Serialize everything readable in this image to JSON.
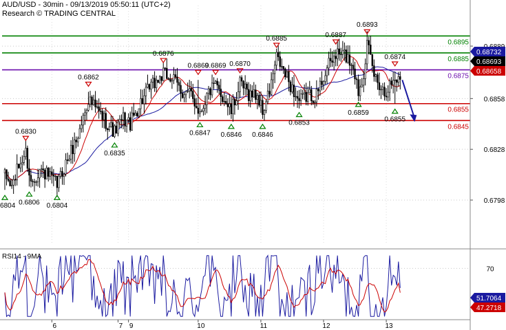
{
  "header": {
    "line1": "AUD/USD - 30min - 09/13/2019 05:50:11 (UTC+2)",
    "line2": "Research © TRADING CENTRAL"
  },
  "rsi_panel": {
    "label": "RSI14 - 9MA"
  },
  "colors": {
    "resistance": "#008000",
    "pivot": "#6a0dad",
    "support": "#cc0000",
    "candle": "#000000",
    "ma_fast": "#cc0000",
    "ma_slow": "#1a1aa0",
    "rsi_line": "#1a1aa0",
    "rsi_ma": "#cc0000",
    "price_tag": "#000000",
    "rsi_tag": "#1a1aa0",
    "ma_tag": "#cc0000",
    "forecast_arrow": "#1a1aa0"
  },
  "chart_data": [
    {
      "type": "candlestick",
      "title": "AUD/USD - 30min",
      "x_ticks": [
        "6",
        "7",
        "9",
        "10",
        "11",
        "12",
        "13"
      ],
      "y_ticks": [
        0.6889,
        0.6858,
        0.6828,
        0.6798
      ],
      "ylim": [
        0.6772,
        0.6913
      ],
      "grid": true,
      "horizontal_levels": [
        {
          "value": 0.6895,
          "label": "0.6895",
          "role": "resistance"
        },
        {
          "value": 0.6885,
          "label": "0.6885",
          "role": "resistance"
        },
        {
          "value": 0.6875,
          "label": "0.6875",
          "role": "pivot"
        },
        {
          "value": 0.6855,
          "label": "0.6855",
          "role": "support"
        },
        {
          "value": 0.6845,
          "label": "0.6845",
          "role": "support"
        }
      ],
      "price_tags": [
        {
          "value": 0.68732,
          "label": "0.68732",
          "role": "ma_slow"
        },
        {
          "value": 0.68693,
          "label": "0.68693",
          "role": "price"
        },
        {
          "value": 0.68658,
          "label": "0.68658",
          "role": "ma_fast"
        }
      ],
      "highs": [
        {
          "i": 12,
          "value": 0.683,
          "label": "0.6830"
        },
        {
          "i": 48,
          "value": 0.6862,
          "label": "0.6862"
        },
        {
          "i": 91,
          "value": 0.6876,
          "label": "0.6876"
        },
        {
          "i": 111,
          "value": 0.6869,
          "label": "0.6869"
        },
        {
          "i": 121,
          "value": 0.6869,
          "label": "0.6869"
        },
        {
          "i": 135,
          "value": 0.687,
          "label": "0.6870"
        },
        {
          "i": 156,
          "value": 0.6885,
          "label": "0.6885"
        },
        {
          "i": 190,
          "value": 0.6887,
          "label": "0.6887"
        },
        {
          "i": 208,
          "value": 0.6893,
          "label": "0.6893"
        },
        {
          "i": 224,
          "value": 0.6874,
          "label": "0.6874"
        }
      ],
      "lows": [
        {
          "i": 0,
          "value": 0.6804,
          "label": "0.6804"
        },
        {
          "i": 14,
          "value": 0.6806,
          "label": "0.6806"
        },
        {
          "i": 30,
          "value": 0.6804,
          "label": "0.6804"
        },
        {
          "i": 63,
          "value": 0.6835,
          "label": "0.6835"
        },
        {
          "i": 112,
          "value": 0.6847,
          "label": "0.6847"
        },
        {
          "i": 130,
          "value": 0.6846,
          "label": "0.6846"
        },
        {
          "i": 148,
          "value": 0.6846,
          "label": "0.6846"
        },
        {
          "i": 169,
          "value": 0.6853,
          "label": "0.6853"
        },
        {
          "i": 203,
          "value": 0.6859,
          "label": "0.6859"
        },
        {
          "i": 224,
          "value": 0.6855,
          "label": "0.6855"
        }
      ],
      "forecast": {
        "from": 0.6869,
        "to": 0.6845
      },
      "anchors": [
        [
          0,
          0.6812
        ],
        [
          4,
          0.6806
        ],
        [
          8,
          0.6818
        ],
        [
          12,
          0.6826
        ],
        [
          15,
          0.6808
        ],
        [
          20,
          0.6816
        ],
        [
          25,
          0.6812
        ],
        [
          30,
          0.6807
        ],
        [
          36,
          0.6822
        ],
        [
          42,
          0.6836
        ],
        [
          48,
          0.6858
        ],
        [
          52,
          0.6852
        ],
        [
          57,
          0.6846
        ],
        [
          63,
          0.6838
        ],
        [
          68,
          0.6846
        ],
        [
          72,
          0.6843
        ],
        [
          78,
          0.6856
        ],
        [
          84,
          0.6865
        ],
        [
          91,
          0.6872
        ],
        [
          96,
          0.687
        ],
        [
          102,
          0.6862
        ],
        [
          107,
          0.686
        ],
        [
          112,
          0.685
        ],
        [
          117,
          0.6862
        ],
        [
          121,
          0.6865
        ],
        [
          126,
          0.6858
        ],
        [
          130,
          0.685
        ],
        [
          135,
          0.6866
        ],
        [
          140,
          0.6861
        ],
        [
          145,
          0.686
        ],
        [
          148,
          0.685
        ],
        [
          152,
          0.6862
        ],
        [
          156,
          0.6882
        ],
        [
          161,
          0.6872
        ],
        [
          166,
          0.6862
        ],
        [
          169,
          0.6856
        ],
        [
          174,
          0.686
        ],
        [
          179,
          0.686
        ],
        [
          184,
          0.6874
        ],
        [
          190,
          0.6884
        ],
        [
          195,
          0.6884
        ],
        [
          200,
          0.6878
        ],
        [
          203,
          0.6862
        ],
        [
          206,
          0.6874
        ],
        [
          208,
          0.689
        ],
        [
          212,
          0.6872
        ],
        [
          218,
          0.6862
        ],
        [
          224,
          0.687
        ],
        [
          227,
          0.6869
        ]
      ]
    },
    {
      "type": "line",
      "title": "RSI14 - 9MA",
      "y_ticks": [
        70
      ],
      "ylim": [
        22,
        85
      ],
      "tags": [
        {
          "value": 51.7064,
          "label": "51.7064",
          "role": "rsi"
        },
        {
          "value": 47.2718,
          "label": "47.2718",
          "role": "rsi_ma"
        }
      ]
    }
  ]
}
